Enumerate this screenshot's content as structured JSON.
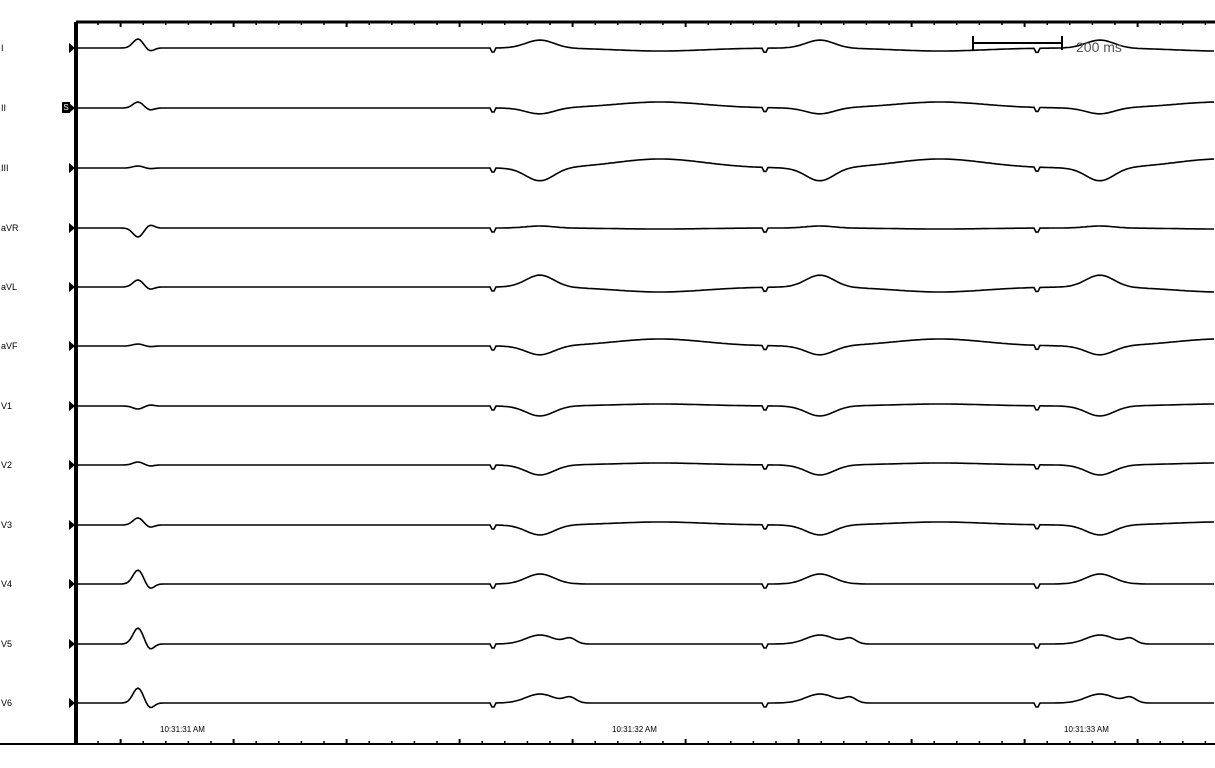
{
  "leads": [
    {
      "label": "I",
      "selected": false
    },
    {
      "label": "II",
      "selected": true
    },
    {
      "label": "III",
      "selected": false
    },
    {
      "label": "aVR",
      "selected": false
    },
    {
      "label": "aVL",
      "selected": false
    },
    {
      "label": "aVF",
      "selected": false
    },
    {
      "label": "V1",
      "selected": false
    },
    {
      "label": "V2",
      "selected": false
    },
    {
      "label": "V3",
      "selected": false
    },
    {
      "label": "V4",
      "selected": false
    },
    {
      "label": "V5",
      "selected": false
    },
    {
      "label": "V6",
      "selected": false
    }
  ],
  "selected_marker": "S",
  "scale_bar": {
    "label": "200 ms"
  },
  "time_axis": {
    "labels": [
      "10:31:31 AM",
      "10:31:32 AM",
      "10:31:33 AM"
    ]
  },
  "colors": {
    "trace": "#000000",
    "background": "#ffffff"
  }
}
